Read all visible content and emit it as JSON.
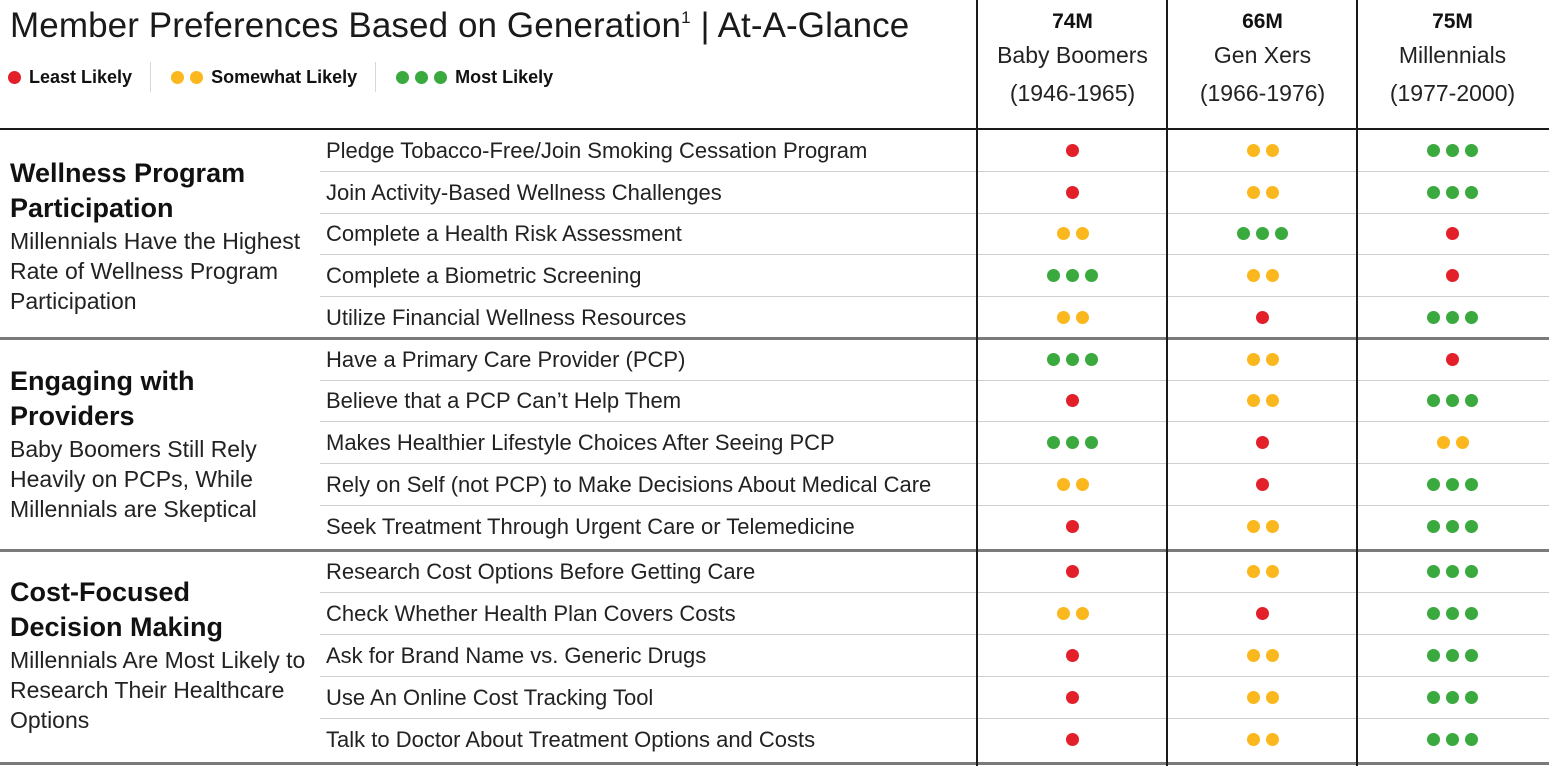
{
  "header": {
    "title": "Member Preferences Based on Generation",
    "title_sup": "1",
    "title_suffix": " | At-A-Glance"
  },
  "legend": [
    {
      "label": "Least Likely",
      "level": 1
    },
    {
      "label": "Somewhat Likely",
      "level": 2
    },
    {
      "label": "Most Likely",
      "level": 3
    }
  ],
  "colors": {
    "level_1": "#e3202a",
    "level_2": "#fbb81e",
    "level_3": "#3aa93e"
  },
  "generations": [
    {
      "count": "74M",
      "name": "Baby Boomers",
      "years": "(1946-1965)"
    },
    {
      "count": "66M",
      "name": "Gen Xers",
      "years": "(1966-1976)"
    },
    {
      "count": "75M",
      "name": "Millennials",
      "years": "(1977-2000)"
    }
  ],
  "sections": [
    {
      "title": "Wellness Program Participation",
      "subtitle": "Millennials Have the Highest Rate of Wellness Program Participation",
      "rows": [
        {
          "label": "Pledge Tobacco-Free/Join Smoking Cessation Program",
          "levels": [
            1,
            2,
            3
          ]
        },
        {
          "label": "Join Activity-Based Wellness Challenges",
          "levels": [
            1,
            2,
            3
          ]
        },
        {
          "label": "Complete a Health Risk Assessment",
          "levels": [
            2,
            3,
            1
          ]
        },
        {
          "label": "Complete a Biometric Screening",
          "levels": [
            3,
            2,
            1
          ]
        },
        {
          "label": "Utilize Financial Wellness Resources",
          "levels": [
            2,
            1,
            3
          ]
        }
      ]
    },
    {
      "title": "Engaging with Providers",
      "subtitle": "Baby Boomers Still Rely Heavily on PCPs, While Millennials are Skeptical",
      "rows": [
        {
          "label": "Have a Primary Care Provider (PCP)",
          "levels": [
            3,
            2,
            1
          ]
        },
        {
          "label": "Believe that a PCP Can’t Help Them",
          "levels": [
            1,
            2,
            3
          ]
        },
        {
          "label": "Makes Healthier Lifestyle Choices After Seeing PCP",
          "levels": [
            3,
            1,
            2
          ]
        },
        {
          "label": "Rely on Self (not PCP) to Make Decisions About Medical Care",
          "levels": [
            2,
            1,
            3
          ]
        },
        {
          "label": "Seek Treatment Through Urgent Care or Telemedicine",
          "levels": [
            1,
            2,
            3
          ]
        }
      ]
    },
    {
      "title": "Cost-Focused Decision Making",
      "subtitle": "Millennials Are Most Likely to Research Their Healthcare Options",
      "rows": [
        {
          "label": "Research Cost Options Before Getting Care",
          "levels": [
            1,
            2,
            3
          ]
        },
        {
          "label": "Check Whether Health Plan Covers Costs",
          "levels": [
            2,
            1,
            3
          ]
        },
        {
          "label": "Ask for Brand Name vs. Generic Drugs",
          "levels": [
            1,
            2,
            3
          ]
        },
        {
          "label": "Use An Online Cost Tracking Tool",
          "levels": [
            1,
            2,
            3
          ]
        },
        {
          "label": "Talk to Doctor About Treatment Options and Costs",
          "levels": [
            1,
            2,
            3
          ]
        }
      ]
    }
  ]
}
